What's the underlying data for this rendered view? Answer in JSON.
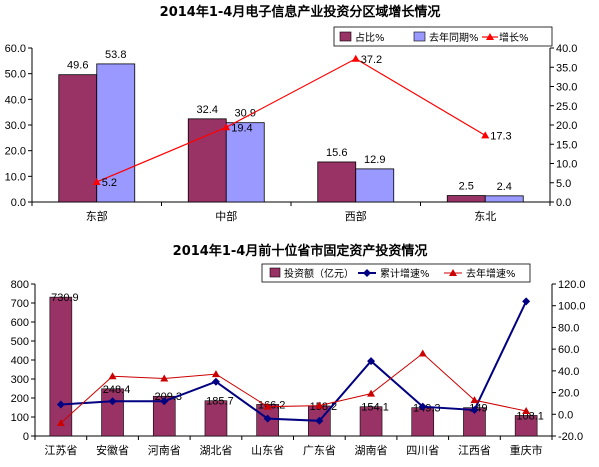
{
  "chart_data": [
    {
      "type": "bar",
      "title": "2014年1-4月电子信息产业投资分区域增长情况",
      "categories": [
        "东部",
        "中部",
        "西部",
        "东北"
      ],
      "series": [
        {
          "name": "占比%",
          "kind": "bar",
          "axis": "left",
          "color": "#993366",
          "values": [
            49.6,
            32.4,
            15.6,
            2.5
          ]
        },
        {
          "name": "去年同期%",
          "kind": "bar",
          "axis": "left",
          "color": "#9999ff",
          "values": [
            53.8,
            30.9,
            12.9,
            2.4
          ]
        },
        {
          "name": "增长%",
          "kind": "line",
          "axis": "right",
          "color": "#ff0000",
          "values": [
            5.2,
            19.4,
            37.2,
            17.3
          ]
        }
      ],
      "ylim_left": [
        0,
        60
      ],
      "yticks_left": [
        "0.0",
        "10.0",
        "20.0",
        "30.0",
        "40.0",
        "50.0",
        "60.0"
      ],
      "ylim_right": [
        0,
        40
      ],
      "yticks_right": [
        "0.0",
        "5.0",
        "10.0",
        "15.0",
        "20.0",
        "25.0",
        "30.0",
        "35.0",
        "40.0"
      ],
      "grid": false,
      "legend": "top-right"
    },
    {
      "type": "bar",
      "title": "2014年1-4月前十位省市固定资产投资情况",
      "categories": [
        "江苏省",
        "安徽省",
        "河南省",
        "湖北省",
        "山东省",
        "广东省",
        "湖南省",
        "四川省",
        "江西省",
        "重庆市"
      ],
      "series": [
        {
          "name": "投资额（亿元）",
          "kind": "bar",
          "axis": "left",
          "color": "#993366",
          "values": [
            730.9,
            248.4,
            209.3,
            185.7,
            166.2,
            158.2,
            154.1,
            149.3,
            149,
            108.1
          ]
        },
        {
          "name": "累计增速%",
          "kind": "line",
          "axis": "right",
          "color": "#000080",
          "values": [
            9,
            12,
            12,
            30,
            -4,
            -6,
            49,
            7,
            4,
            104
          ]
        },
        {
          "name": "去年增速%",
          "kind": "line",
          "axis": "right",
          "color": "#cc0000",
          "values": [
            -8,
            35,
            33,
            37,
            7,
            8,
            19,
            56,
            13,
            3
          ]
        }
      ],
      "data_labels": [
        "730.9",
        "248.4",
        "209.3",
        "185.7",
        "166.2",
        "158.2",
        "154.1",
        "149.3",
        "149",
        "108.1"
      ],
      "ylim_left": [
        0,
        800
      ],
      "yticks_left": [
        "0",
        "100",
        "200",
        "300",
        "400",
        "500",
        "600",
        "700",
        "800"
      ],
      "ylim_right": [
        -20,
        120
      ],
      "yticks_right": [
        "-20.0",
        "0.0",
        "20.0",
        "40.0",
        "60.0",
        "80.0",
        "100.0",
        "120.0"
      ],
      "grid": false,
      "legend": "top-right"
    }
  ]
}
